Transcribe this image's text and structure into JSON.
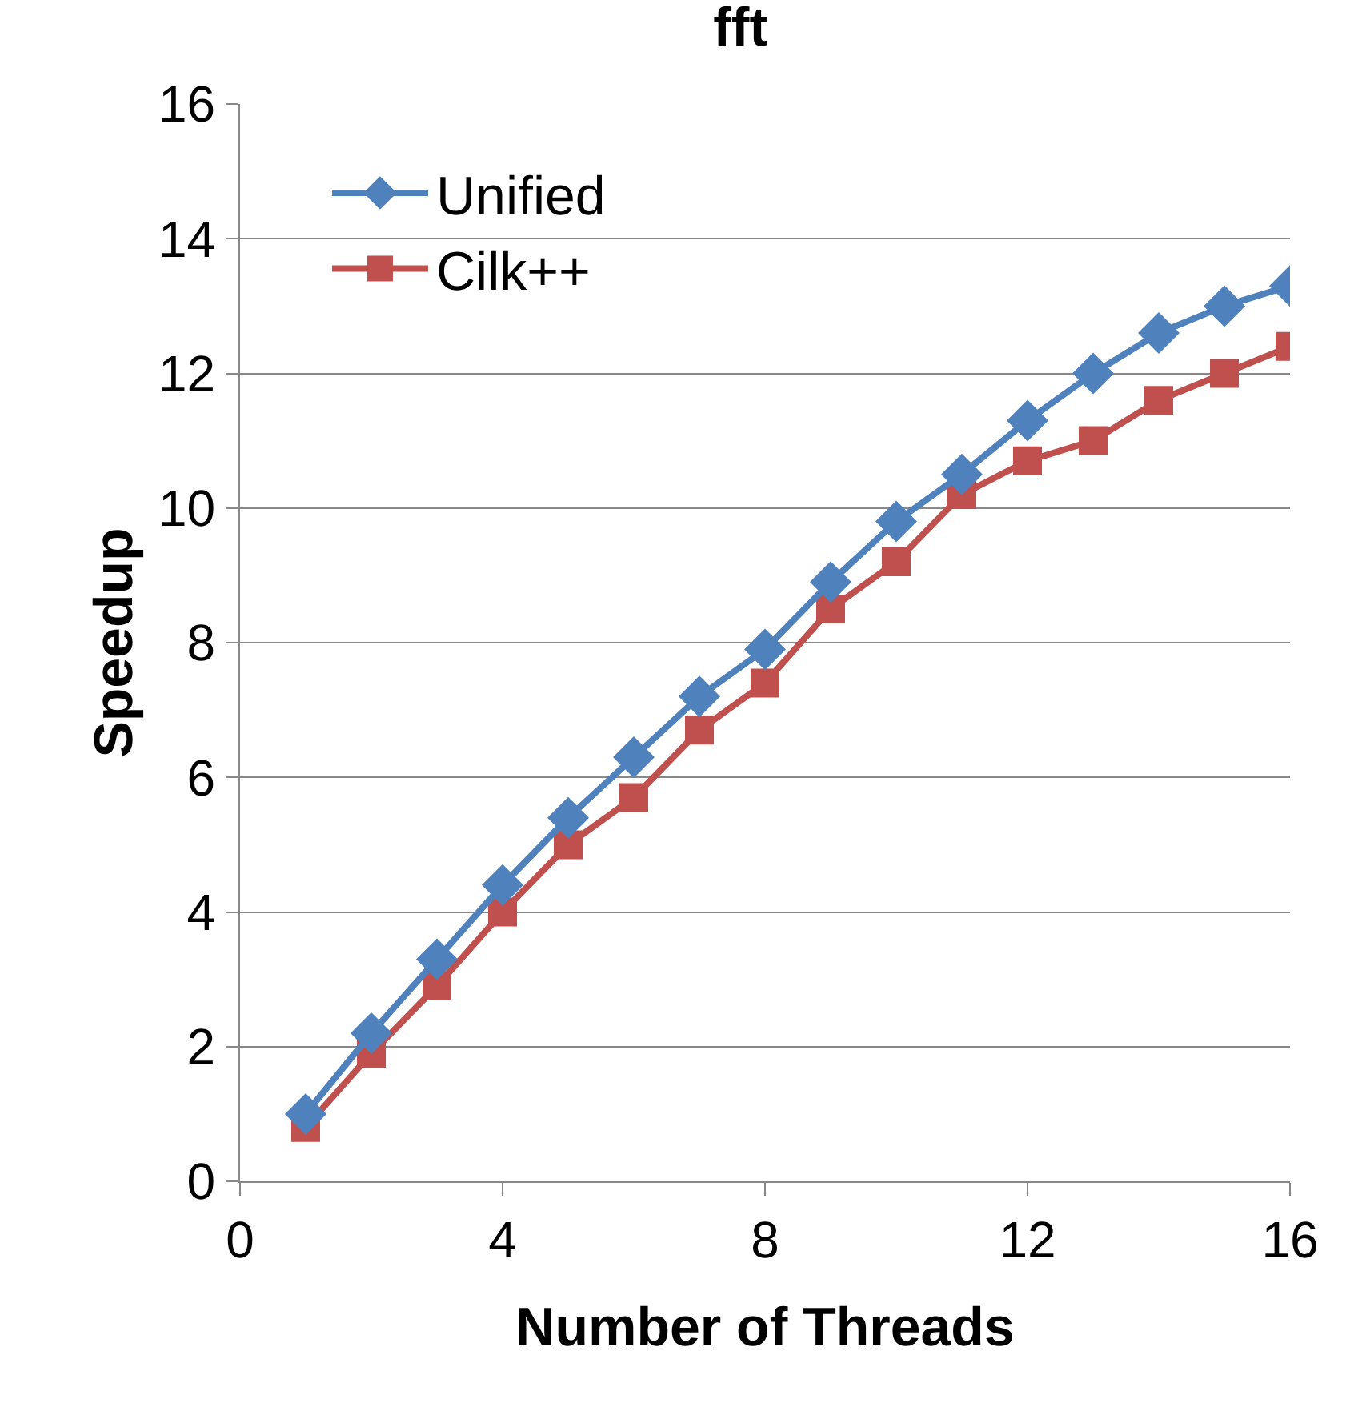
{
  "chart_data": {
    "type": "line",
    "title": "fft",
    "xlabel": "Number of Threads",
    "ylabel": "Speedup",
    "x": [
      1,
      2,
      3,
      4,
      5,
      6,
      7,
      8,
      9,
      10,
      11,
      12,
      13,
      14,
      15,
      16
    ],
    "series": [
      {
        "name": "Unified",
        "color": "#4f81bd",
        "marker": "diamond",
        "values": [
          1.0,
          2.2,
          3.3,
          4.4,
          5.4,
          6.3,
          7.2,
          7.9,
          8.9,
          9.8,
          10.5,
          11.3,
          12.0,
          12.6,
          13.0,
          13.3
        ]
      },
      {
        "name": "Cilk++",
        "color": "#c0504d",
        "marker": "square",
        "values": [
          0.8,
          1.9,
          2.9,
          4.0,
          5.0,
          5.7,
          6.7,
          7.4,
          8.5,
          9.2,
          10.2,
          10.7,
          11.0,
          11.6,
          12.0,
          12.4
        ]
      }
    ],
    "xlim": [
      0,
      16
    ],
    "xticks": [
      0,
      4,
      8,
      12,
      16
    ],
    "ylim": [
      0,
      16
    ],
    "yticks": [
      0,
      2,
      4,
      6,
      8,
      10,
      12,
      14,
      16
    ],
    "grid": "y",
    "legend": "top left",
    "line_style": "solid"
  }
}
